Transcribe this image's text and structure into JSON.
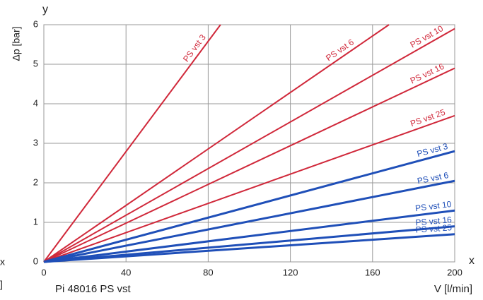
{
  "chart_data": {
    "type": "line",
    "title": "Pi 48016 PS vst",
    "x_label": "V [l/min]",
    "y_label": "Δp [bar]",
    "x_axis_letter": "x",
    "y_axis_letter": "y",
    "left_fragments": [
      "x",
      "]"
    ],
    "xlim": [
      0,
      200
    ],
    "ylim": [
      0,
      6
    ],
    "xticks": [
      0,
      40,
      80,
      120,
      160,
      200
    ],
    "yticks": [
      0,
      1,
      2,
      3,
      4,
      5,
      6
    ],
    "grid": true,
    "series": [
      {
        "name": "PS vst 3",
        "color": "#d0283a",
        "x": [
          0,
          86
        ],
        "values": [
          0,
          6
        ]
      },
      {
        "name": "PS vst 6",
        "color": "#d0283a",
        "x": [
          0,
          168
        ],
        "values": [
          0,
          6
        ]
      },
      {
        "name": "PS vst 10",
        "color": "#d0283a",
        "x": [
          0,
          200
        ],
        "values": [
          0,
          5.9
        ]
      },
      {
        "name": "PS vst 16",
        "color": "#d0283a",
        "x": [
          0,
          200
        ],
        "values": [
          0,
          4.9
        ]
      },
      {
        "name": "PS vst 25",
        "color": "#d0283a",
        "x": [
          0,
          200
        ],
        "values": [
          0,
          3.7
        ]
      },
      {
        "name": "PS vst 3",
        "color": "#1f4fb8",
        "x": [
          0,
          200
        ],
        "values": [
          0,
          2.8
        ]
      },
      {
        "name": "PS vst 6",
        "color": "#1f4fb8",
        "x": [
          0,
          200
        ],
        "values": [
          0,
          2.05
        ]
      },
      {
        "name": "PS vst 10",
        "color": "#1f4fb8",
        "x": [
          0,
          200
        ],
        "values": [
          0,
          1.3
        ]
      },
      {
        "name": "PS vst 16",
        "color": "#1f4fb8",
        "x": [
          0,
          200
        ],
        "values": [
          0,
          0.9
        ]
      },
      {
        "name": "PS vst 25",
        "color": "#1f4fb8",
        "x": [
          0,
          200
        ],
        "values": [
          0,
          0.7
        ]
      }
    ]
  }
}
